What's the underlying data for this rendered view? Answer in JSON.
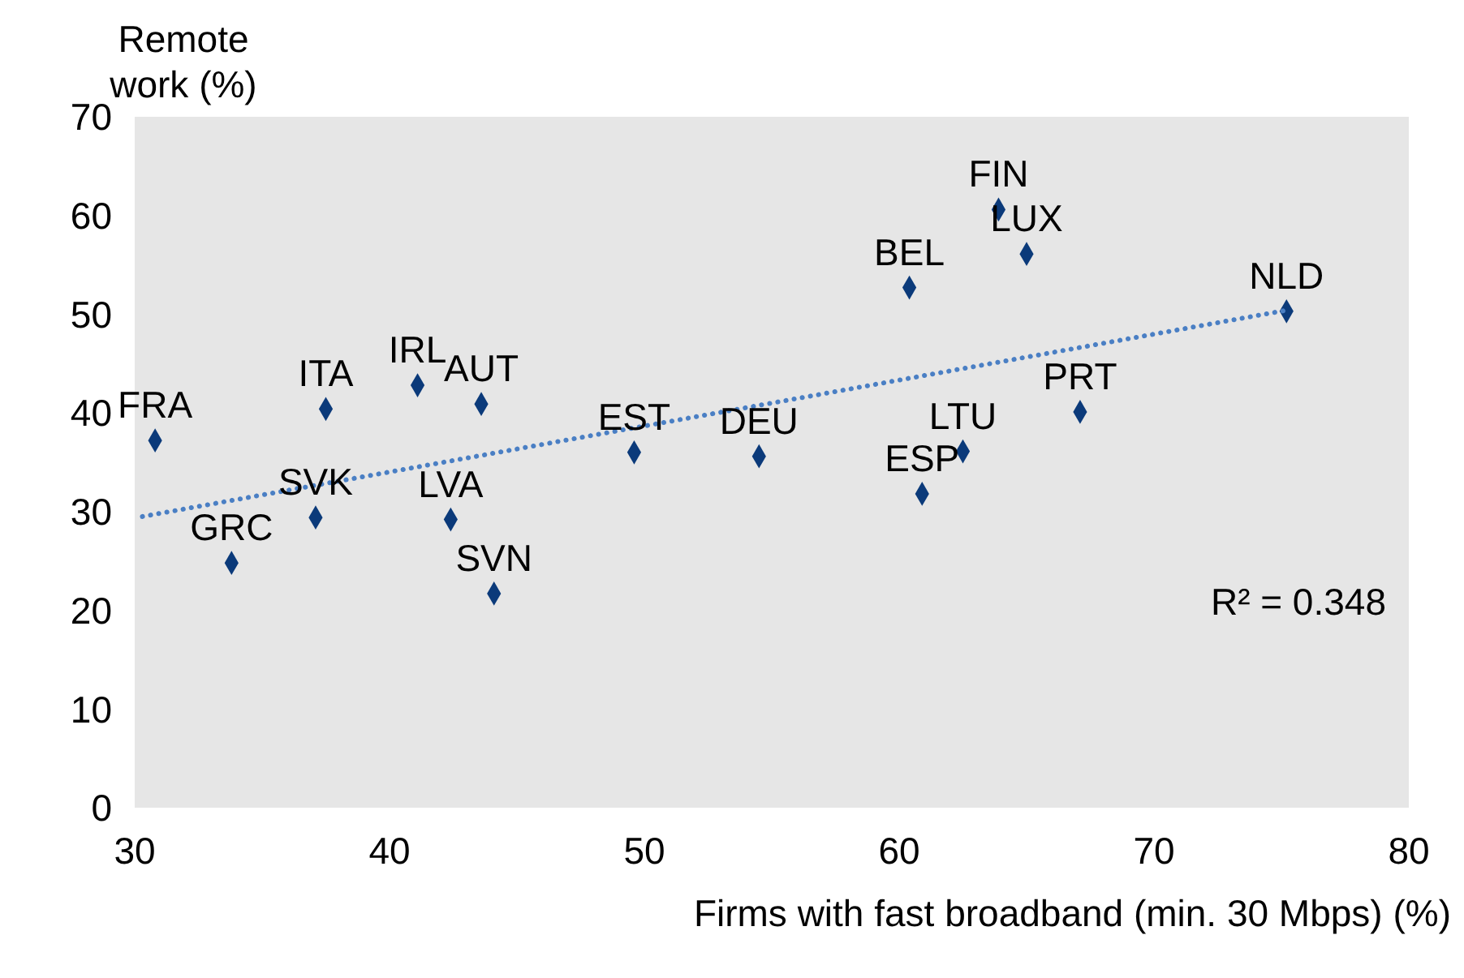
{
  "chart_data": {
    "type": "scatter",
    "xlabel": "Firms with fast broadband (min. 30 Mbps) (%)",
    "ylabel": "Remote work (%)",
    "xlim": [
      30,
      80
    ],
    "xticks": [
      30,
      40,
      50,
      60,
      70,
      80
    ],
    "ylim": [
      0,
      70
    ],
    "yticks": [
      0,
      10,
      20,
      30,
      40,
      50,
      60,
      70
    ],
    "grid": false,
    "legend": false,
    "marker": "diamond",
    "series": [
      {
        "color": "#0b3a7a",
        "x": [
          30.8,
          33.8,
          37.1,
          37.5,
          41.1,
          43.6,
          42.4,
          44.1,
          49.6,
          54.5,
          60.9,
          62.5,
          60.4,
          63.9,
          65.0,
          67.1,
          75.2
        ],
        "values": [
          37.2,
          24.8,
          29.4,
          40.4,
          42.8,
          40.9,
          29.2,
          21.7,
          36.0,
          35.6,
          31.8,
          36.1,
          52.7,
          60.6,
          56.1,
          40.1,
          50.3
        ]
      },
      {
        "type": "line",
        "color": "#4a7fc4",
        "line_style": "dotted",
        "marker": "none",
        "x": [
          30.3,
          75.2
        ],
        "values": [
          29.5,
          50.4
        ]
      }
    ],
    "annotations": [
      {
        "text": "FRA",
        "x": 30.8,
        "y": 37.2
      },
      {
        "text": "GRC",
        "x": 33.8,
        "y": 24.8
      },
      {
        "text": "SVK",
        "x": 37.1,
        "y": 29.4
      },
      {
        "text": "ITA",
        "x": 37.5,
        "y": 40.4
      },
      {
        "text": "IRL",
        "x": 41.1,
        "y": 42.8
      },
      {
        "text": "AUT",
        "x": 43.6,
        "y": 40.9
      },
      {
        "text": "LVA",
        "x": 42.4,
        "y": 29.2
      },
      {
        "text": "SVN",
        "x": 44.1,
        "y": 21.7
      },
      {
        "text": "EST",
        "x": 49.6,
        "y": 36.0
      },
      {
        "text": "DEU",
        "x": 54.5,
        "y": 35.6
      },
      {
        "text": "ESP",
        "x": 60.9,
        "y": 31.8
      },
      {
        "text": "LTU",
        "x": 62.5,
        "y": 36.1
      },
      {
        "text": "BEL",
        "x": 60.4,
        "y": 52.7
      },
      {
        "text": "FIN",
        "x": 63.9,
        "y": 60.6
      },
      {
        "text": "LUX",
        "x": 65.0,
        "y": 56.1
      },
      {
        "text": "PRT",
        "x": 67.1,
        "y": 40.1
      },
      {
        "text": "NLD",
        "x": 75.2,
        "y": 50.3
      },
      "R² = 0.348"
    ]
  }
}
